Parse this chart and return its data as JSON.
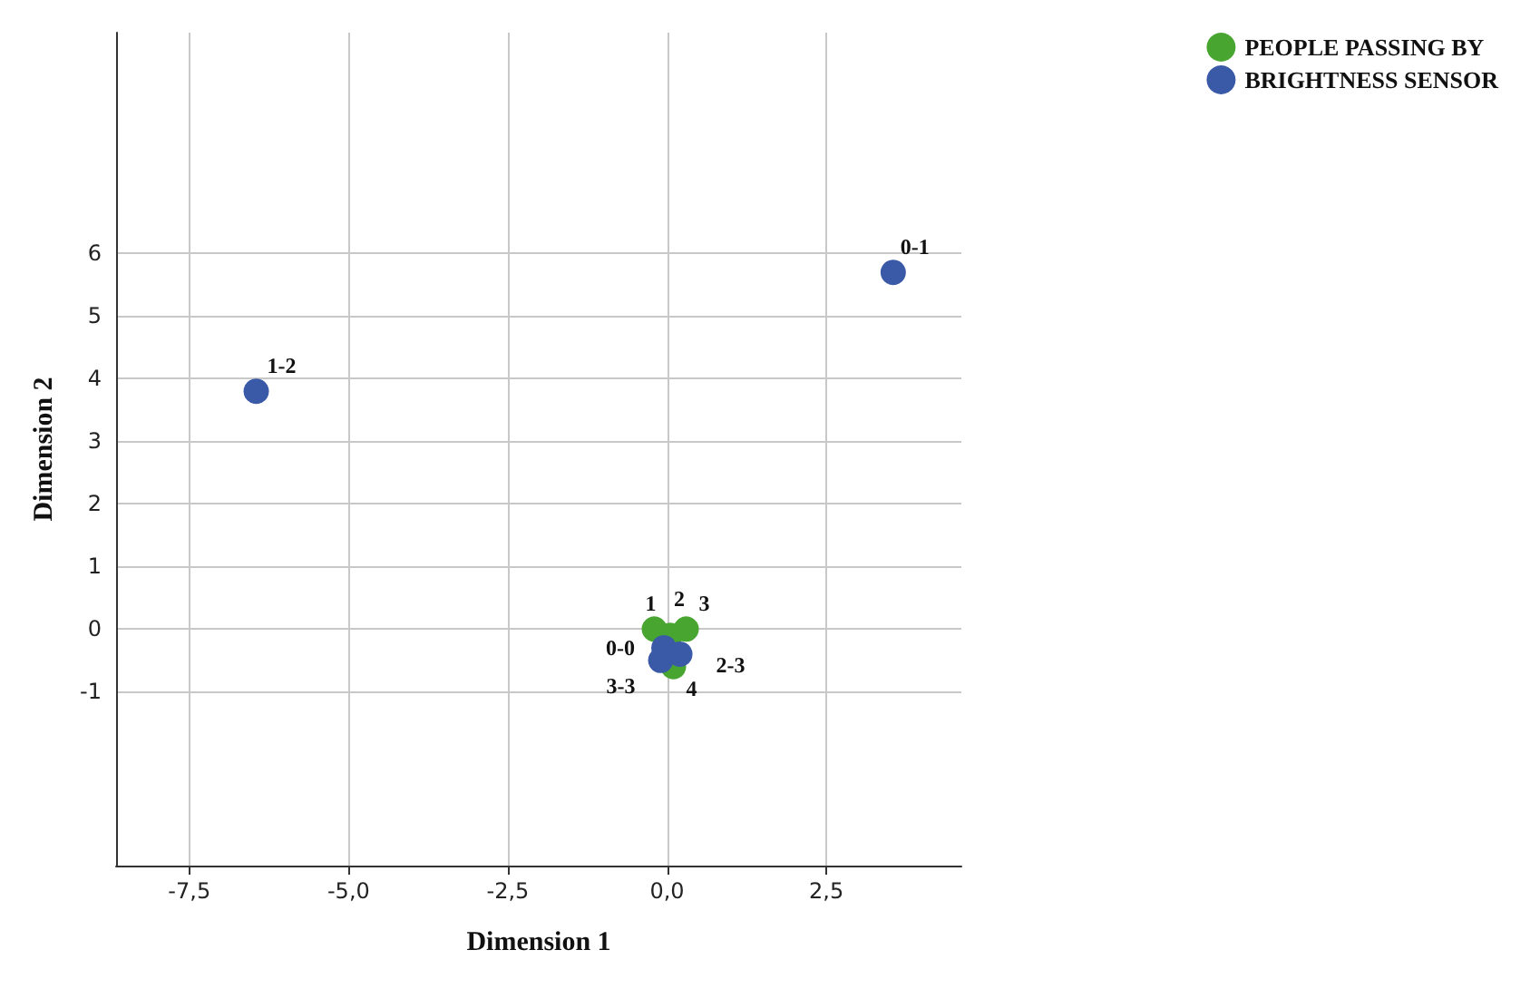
{
  "chart_data": {
    "type": "scatter",
    "xlabel": "Dimension 1",
    "ylabel": "Dimension 2",
    "xlim": [
      -8.65,
      4.62
    ],
    "ylim": [
      -3.78,
      9.53
    ],
    "xticks": [
      {
        "value": -7.5,
        "label": "-7,5"
      },
      {
        "value": -5,
        "label": "-5,0"
      },
      {
        "value": -2.5,
        "label": "-2,5"
      },
      {
        "value": 0,
        "label": "0,0"
      },
      {
        "value": 2.5,
        "label": "2,5"
      }
    ],
    "yticks": [
      -1,
      0,
      1,
      2,
      3,
      4,
      5,
      6
    ],
    "grid": true,
    "legend": "top right",
    "marker": "circle",
    "series": [
      {
        "name": "PEOPLE PASSING BY",
        "color": "#48a630",
        "x": [
          -0.2,
          0.05,
          0.3,
          0.1
        ],
        "values": [
          0.0,
          -0.1,
          0.0,
          -0.6
        ]
      },
      {
        "name": "BRIGHTNESS SENSOR",
        "color": "#3a5aa8",
        "x": [
          -0.05,
          -0.1,
          0.2,
          3.55,
          -6.45
        ],
        "values": [
          -0.3,
          -0.5,
          -0.4,
          5.7,
          3.8
        ]
      }
    ],
    "annotations": [
      {
        "text": "1",
        "x": -0.2,
        "y": 0.0
      },
      {
        "text": "2",
        "x": 0.05,
        "y": -0.1
      },
      {
        "text": "3",
        "x": 0.3,
        "y": 0.0
      },
      {
        "text": "4",
        "x": 0.1,
        "y": -0.6
      },
      {
        "text": "0-0",
        "x": -0.05,
        "y": -0.3
      },
      {
        "text": "3-3",
        "x": -0.1,
        "y": -0.5
      },
      {
        "text": "2-3",
        "x": 0.2,
        "y": -0.4
      },
      {
        "text": "0-1",
        "x": 3.55,
        "y": 5.7
      },
      {
        "text": "1-2",
        "x": -6.45,
        "y": 3.8
      }
    ]
  }
}
